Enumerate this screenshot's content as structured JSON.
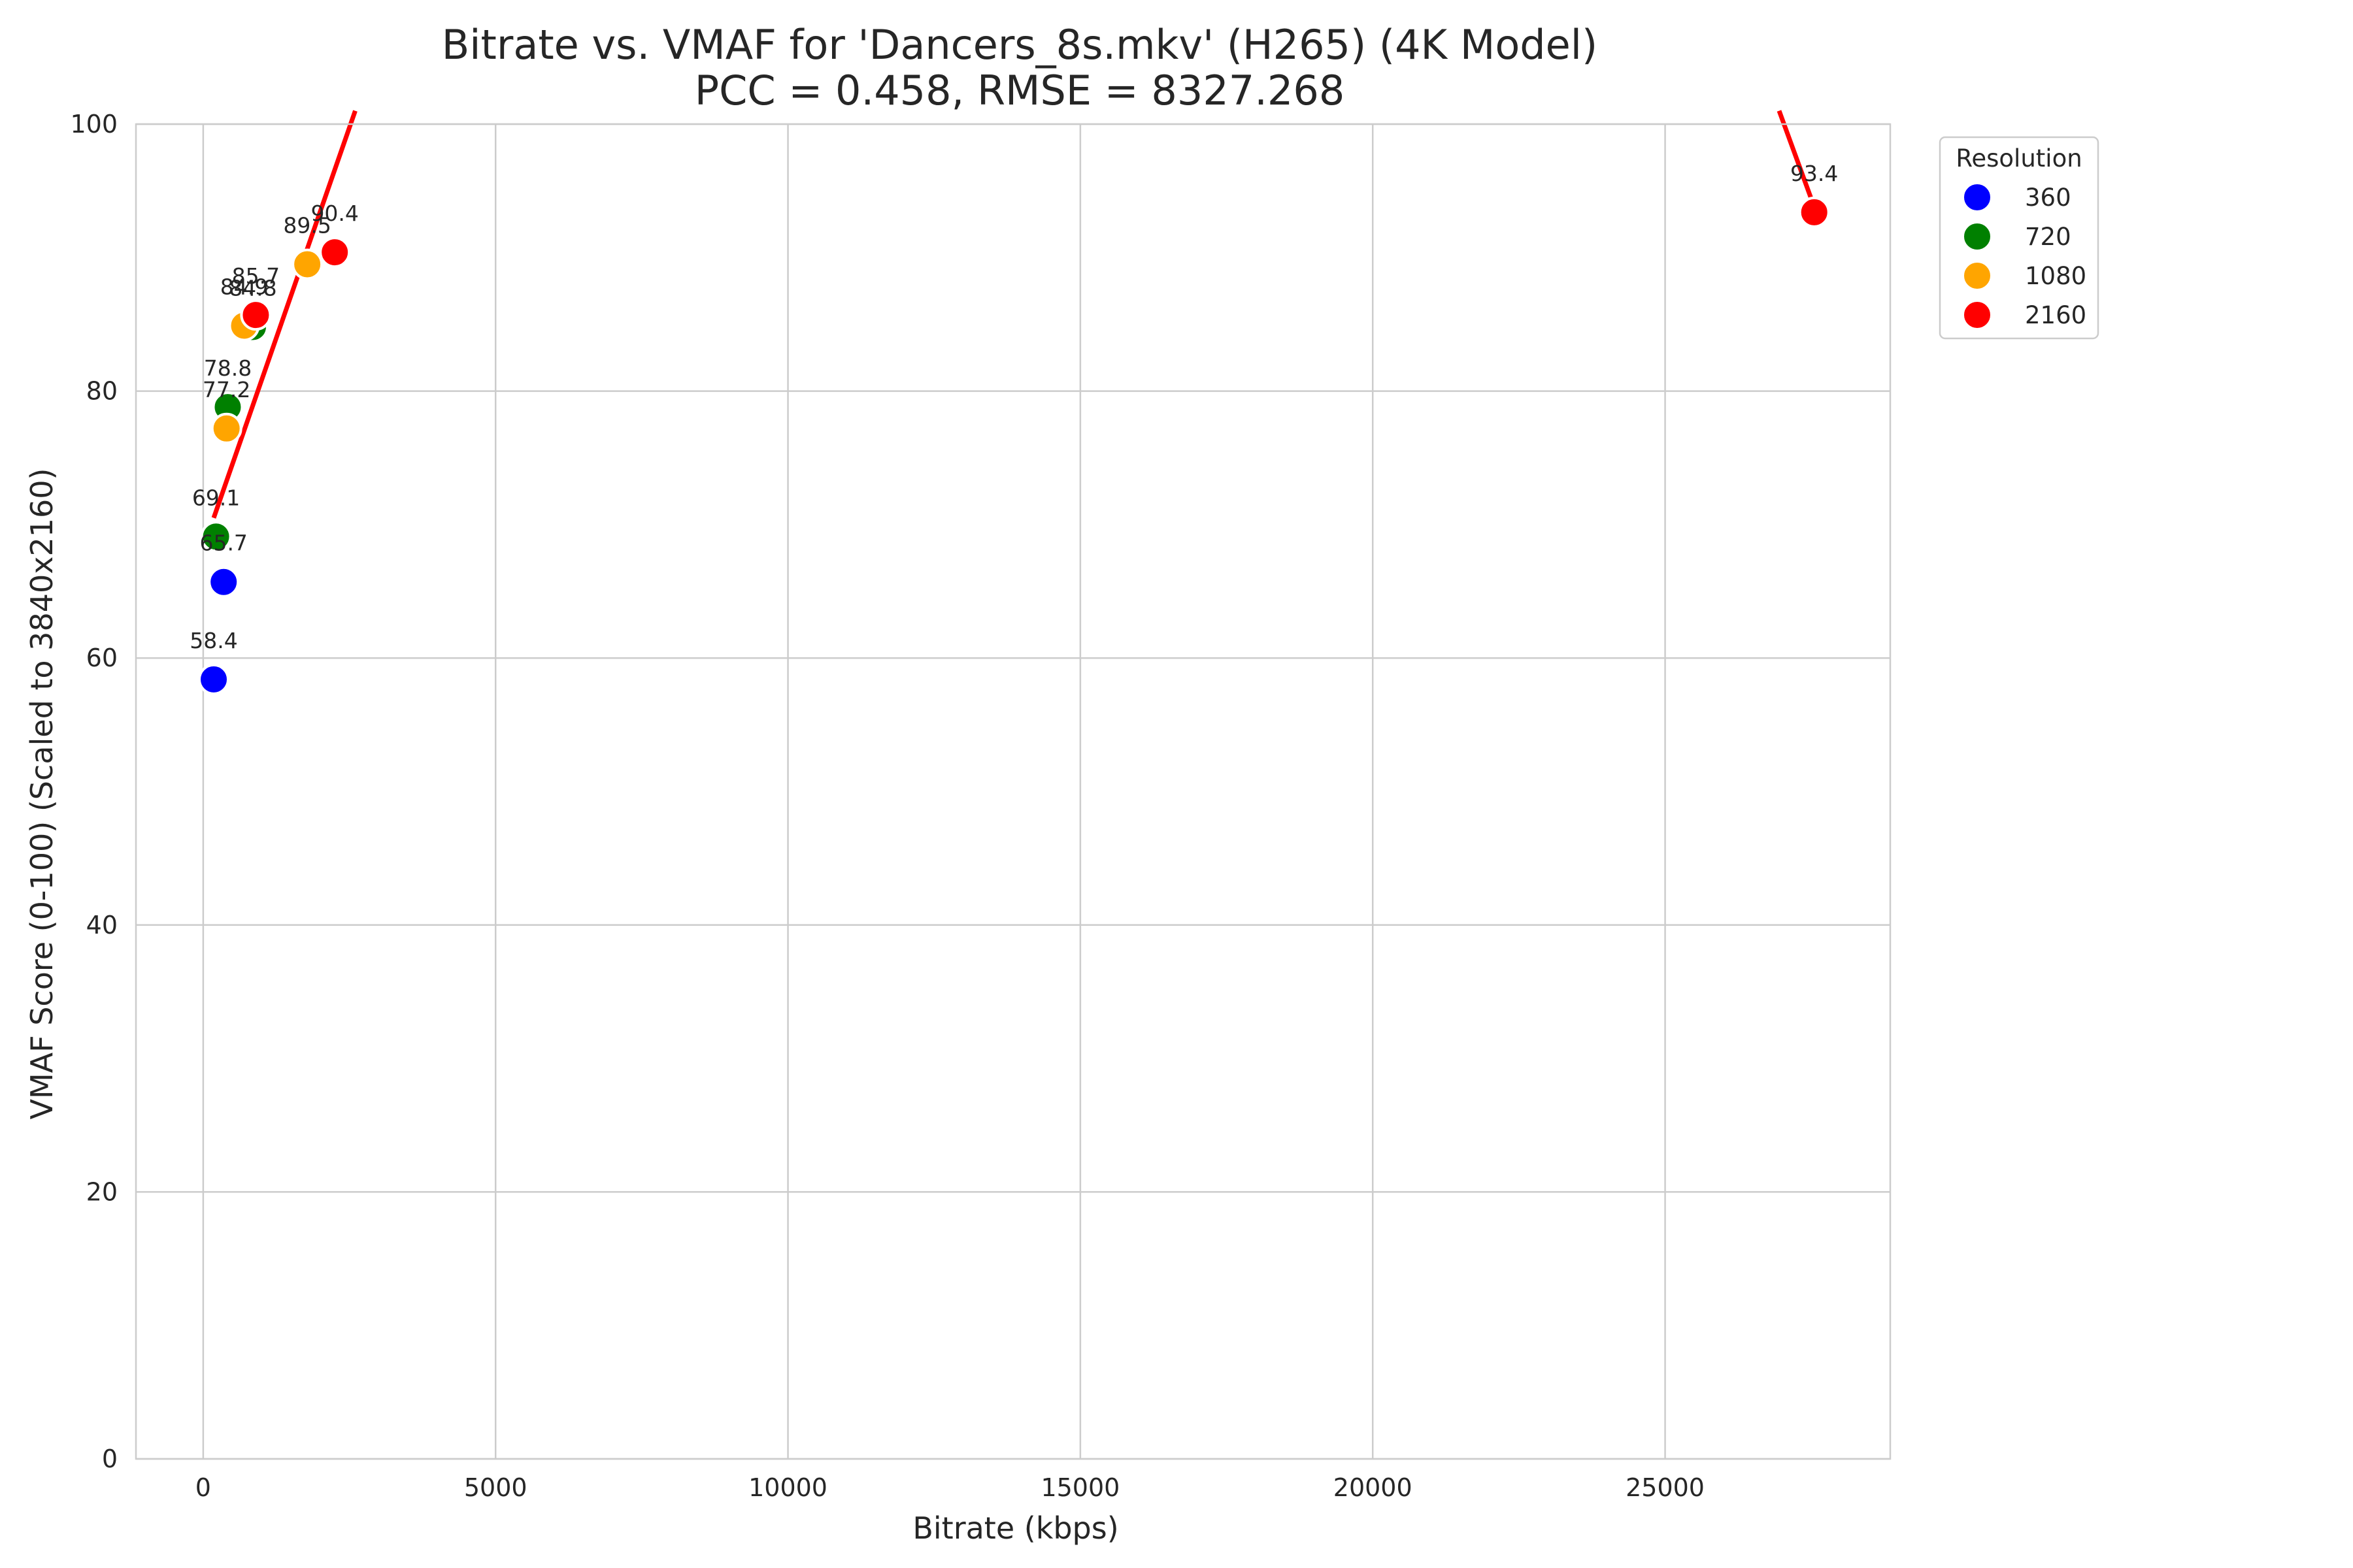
{
  "chart_data": {
    "type": "scatter",
    "title_line1": "Bitrate vs. VMAF for 'Dancers_8s.mkv' (H265) (4K Model)",
    "title_line2": "PCC = 0.458, RMSE = 8327.268",
    "xlabel": "Bitrate (kbps)",
    "ylabel": "VMAF Score (0-100) (Scaled to 3840x2160)",
    "xlim": [
      -1150,
      28850
    ],
    "ylim": [
      0,
      100
    ],
    "x_ticks": [
      0,
      5000,
      10000,
      15000,
      20000,
      25000
    ],
    "y_ticks": [
      0,
      20,
      40,
      60,
      80,
      100
    ],
    "grid": true,
    "legend": {
      "title": "Resolution",
      "placement": "upper-right-outside"
    },
    "series": [
      {
        "name": "360",
        "color": "#0000ff",
        "points": [
          {
            "x": 180,
            "y": 58.4,
            "label": "58.4"
          },
          {
            "x": 350,
            "y": 65.7,
            "label": "65.7"
          }
        ]
      },
      {
        "name": "720",
        "color": "#008000",
        "points": [
          {
            "x": 220,
            "y": 69.1,
            "label": "69.1"
          },
          {
            "x": 420,
            "y": 78.8,
            "label": "78.8"
          },
          {
            "x": 850,
            "y": 84.8,
            "label": "84.8"
          }
        ]
      },
      {
        "name": "1080",
        "color": "#ffa500",
        "points": [
          {
            "x": 400,
            "y": 77.2,
            "label": "77.2"
          },
          {
            "x": 700,
            "y": 84.9,
            "label": "84.9"
          },
          {
            "x": 1780,
            "y": 89.5,
            "label": "89.5"
          }
        ]
      },
      {
        "name": "2160",
        "color": "#ff0000",
        "points": [
          {
            "x": 900,
            "y": 85.7,
            "label": "85.7"
          },
          {
            "x": 2250,
            "y": 90.4,
            "label": "90.4"
          },
          {
            "x": 27550,
            "y": 93.4,
            "label": "93.4"
          }
        ]
      }
    ],
    "fit_lines": [
      {
        "color": "#ff0000",
        "points": [
          [
            180,
            70.5
          ],
          [
            2600,
            101
          ]
        ]
      },
      {
        "color": "#ff0000",
        "points": [
          [
            26950,
            101
          ],
          [
            27500,
            94.4
          ]
        ]
      }
    ]
  }
}
